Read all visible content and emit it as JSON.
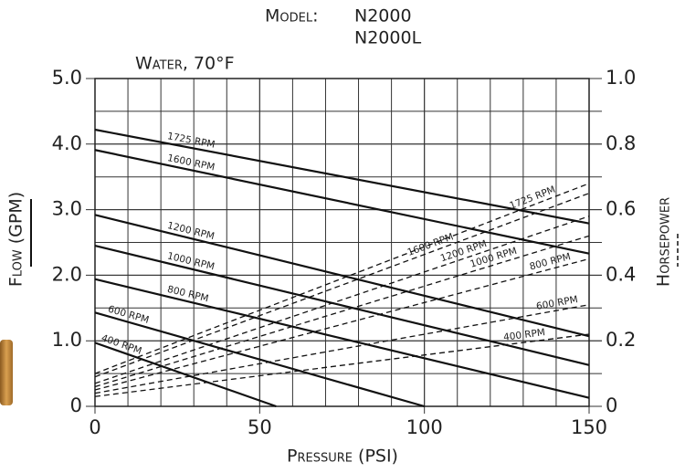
{
  "chart_data": {
    "type": "line",
    "title": "Model:",
    "models": [
      "N2000",
      "N2000L"
    ],
    "subtitle": "Water, 70°F",
    "xlabel": "Pressure (PSI)",
    "ylabel": "Flow (GPM)",
    "y2label": "Horsepower",
    "xlim": [
      0,
      150
    ],
    "xticks": [
      0,
      50,
      100,
      150
    ],
    "ylim": [
      0,
      5
    ],
    "yticks": [
      0,
      {
        "value": 1,
        "label": "1.0"
      },
      {
        "value": 2,
        "label": "2.0"
      },
      {
        "value": 3,
        "label": "3.0"
      },
      {
        "value": 4,
        "label": "4.0"
      },
      {
        "value": 5,
        "label": "5.0"
      }
    ],
    "y2lim": [
      0,
      1
    ],
    "y2ticks": [
      0,
      {
        "value": 0.2,
        "label": "0.2"
      },
      {
        "value": 0.4,
        "label": "0.4"
      },
      {
        "value": 0.6,
        "label": "0.6"
      },
      {
        "value": 0.8,
        "label": "0.8"
      },
      {
        "value": 1,
        "label": "1.0"
      }
    ],
    "grid": true,
    "xgrid": [
      10,
      20,
      30,
      40,
      50,
      60,
      70,
      80,
      90,
      100,
      110,
      120,
      130,
      140
    ],
    "ygrid": [
      0.5,
      1,
      1.5,
      2,
      2.5,
      3,
      3.5,
      4,
      4.5
    ],
    "color": "#111111",
    "series": [
      {
        "name": "1725 RPM",
        "style": "solid",
        "x": [
          0,
          150
        ],
        "values": [
          4.22,
          2.79
        ]
      },
      {
        "name": "1600 RPM",
        "style": "solid",
        "x": [
          0,
          150
        ],
        "values": [
          3.91,
          2.33
        ]
      },
      {
        "name": "1200 RPM",
        "style": "solid",
        "x": [
          0,
          150
        ],
        "values": [
          2.92,
          1.07
        ]
      },
      {
        "name": "1000 RPM",
        "style": "solid",
        "x": [
          0,
          150
        ],
        "values": [
          2.45,
          0.63
        ]
      },
      {
        "name": "800 RPM",
        "style": "solid",
        "x": [
          0,
          150
        ],
        "values": [
          1.94,
          0.13
        ]
      },
      {
        "name": "600 RPM",
        "style": "solid",
        "x": [
          0,
          100
        ],
        "values": [
          1.43,
          0
        ]
      },
      {
        "name": "400 RPM",
        "style": "solid",
        "x": [
          0,
          55
        ],
        "values": [
          0.97,
          0
        ]
      },
      {
        "name": "1725 RPM",
        "style": "dashed",
        "axis": "y2",
        "x": [
          0,
          150
        ],
        "values": [
          0.1,
          0.68
        ]
      },
      {
        "name": "1600 RPM",
        "style": "dashed",
        "axis": "y2",
        "x": [
          0,
          150
        ],
        "values": [
          0.09,
          0.65
        ]
      },
      {
        "name": "1200 RPM",
        "style": "dashed",
        "axis": "y2",
        "x": [
          0,
          150
        ],
        "values": [
          0.07,
          0.58
        ]
      },
      {
        "name": "1000 RPM",
        "style": "dashed",
        "axis": "y2",
        "x": [
          0,
          150
        ],
        "values": [
          0.06,
          0.52
        ]
      },
      {
        "name": "800 RPM",
        "style": "dashed",
        "axis": "y2",
        "x": [
          0,
          150
        ],
        "values": [
          0.05,
          0.45
        ]
      },
      {
        "name": "600 RPM",
        "style": "dashed",
        "axis": "y2",
        "x": [
          0,
          150
        ],
        "values": [
          0.04,
          0.31
        ]
      },
      {
        "name": "400 RPM",
        "style": "dashed",
        "axis": "y2",
        "x": [
          0,
          150
        ],
        "values": [
          0.03,
          0.22
        ]
      }
    ]
  }
}
